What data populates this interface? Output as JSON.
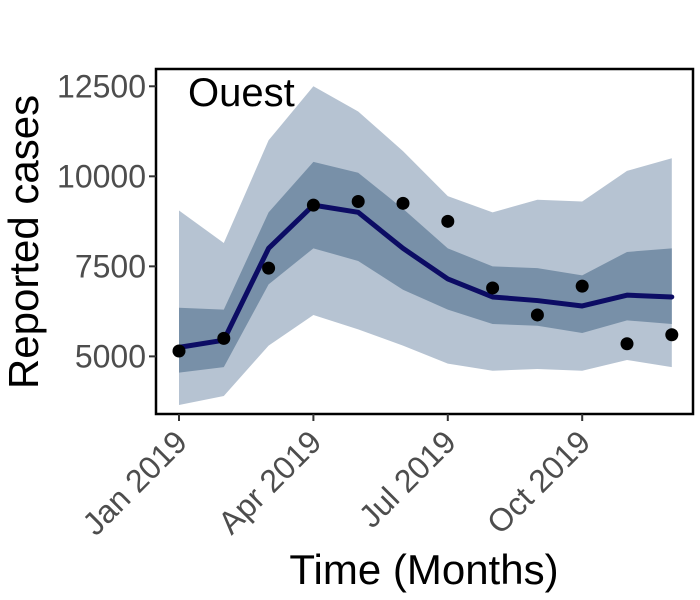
{
  "chart_data": {
    "type": "line",
    "title": "Ouest",
    "xlabel": "Time (Months)",
    "ylabel": "Reported cases",
    "x_tick_labels": [
      "Jan 2019",
      "Apr 2019",
      "Jul 2019",
      "Oct 2019"
    ],
    "y_ticks": [
      5000,
      7500,
      10000,
      12500
    ],
    "y_tick_labels": [
      "5000",
      "7500",
      "10000",
      "12500"
    ],
    "ylim": [
      3000,
      12500
    ],
    "grid": false,
    "months": [
      "2019-01",
      "2019-02",
      "2019-03",
      "2019-04",
      "2019-05",
      "2019-06",
      "2019-07",
      "2019-08",
      "2019-09",
      "2019-10",
      "2019-11",
      "2019-12"
    ],
    "series": [
      {
        "role": "interval_95",
        "lower": [
          3650,
          3900,
          5300,
          6150,
          5750,
          5300,
          4800,
          4600,
          4650,
          4600,
          4900,
          4700
        ],
        "upper": [
          9050,
          8150,
          11000,
          12500,
          11800,
          10700,
          9450,
          9000,
          9350,
          9300,
          10150,
          10500
        ],
        "color": "#b6c3d2"
      },
      {
        "role": "interval_50",
        "lower": [
          4550,
          4700,
          7000,
          8000,
          7650,
          6850,
          6300,
          5900,
          5850,
          5650,
          6000,
          5900
        ],
        "upper": [
          6350,
          6300,
          9000,
          10400,
          10100,
          9100,
          8000,
          7500,
          7450,
          7250,
          7900,
          8000
        ],
        "color": "#7890a8"
      },
      {
        "role": "median",
        "values": [
          5250,
          5450,
          8000,
          9200,
          9000,
          8000,
          7150,
          6650,
          6550,
          6400,
          6700,
          6650
        ],
        "color": "#0c0c64"
      },
      {
        "role": "observed",
        "values": [
          5150,
          5500,
          7450,
          9200,
          9300,
          9250,
          8750,
          6900,
          6150,
          6950,
          5350,
          5600
        ],
        "color": "#000000"
      }
    ]
  }
}
